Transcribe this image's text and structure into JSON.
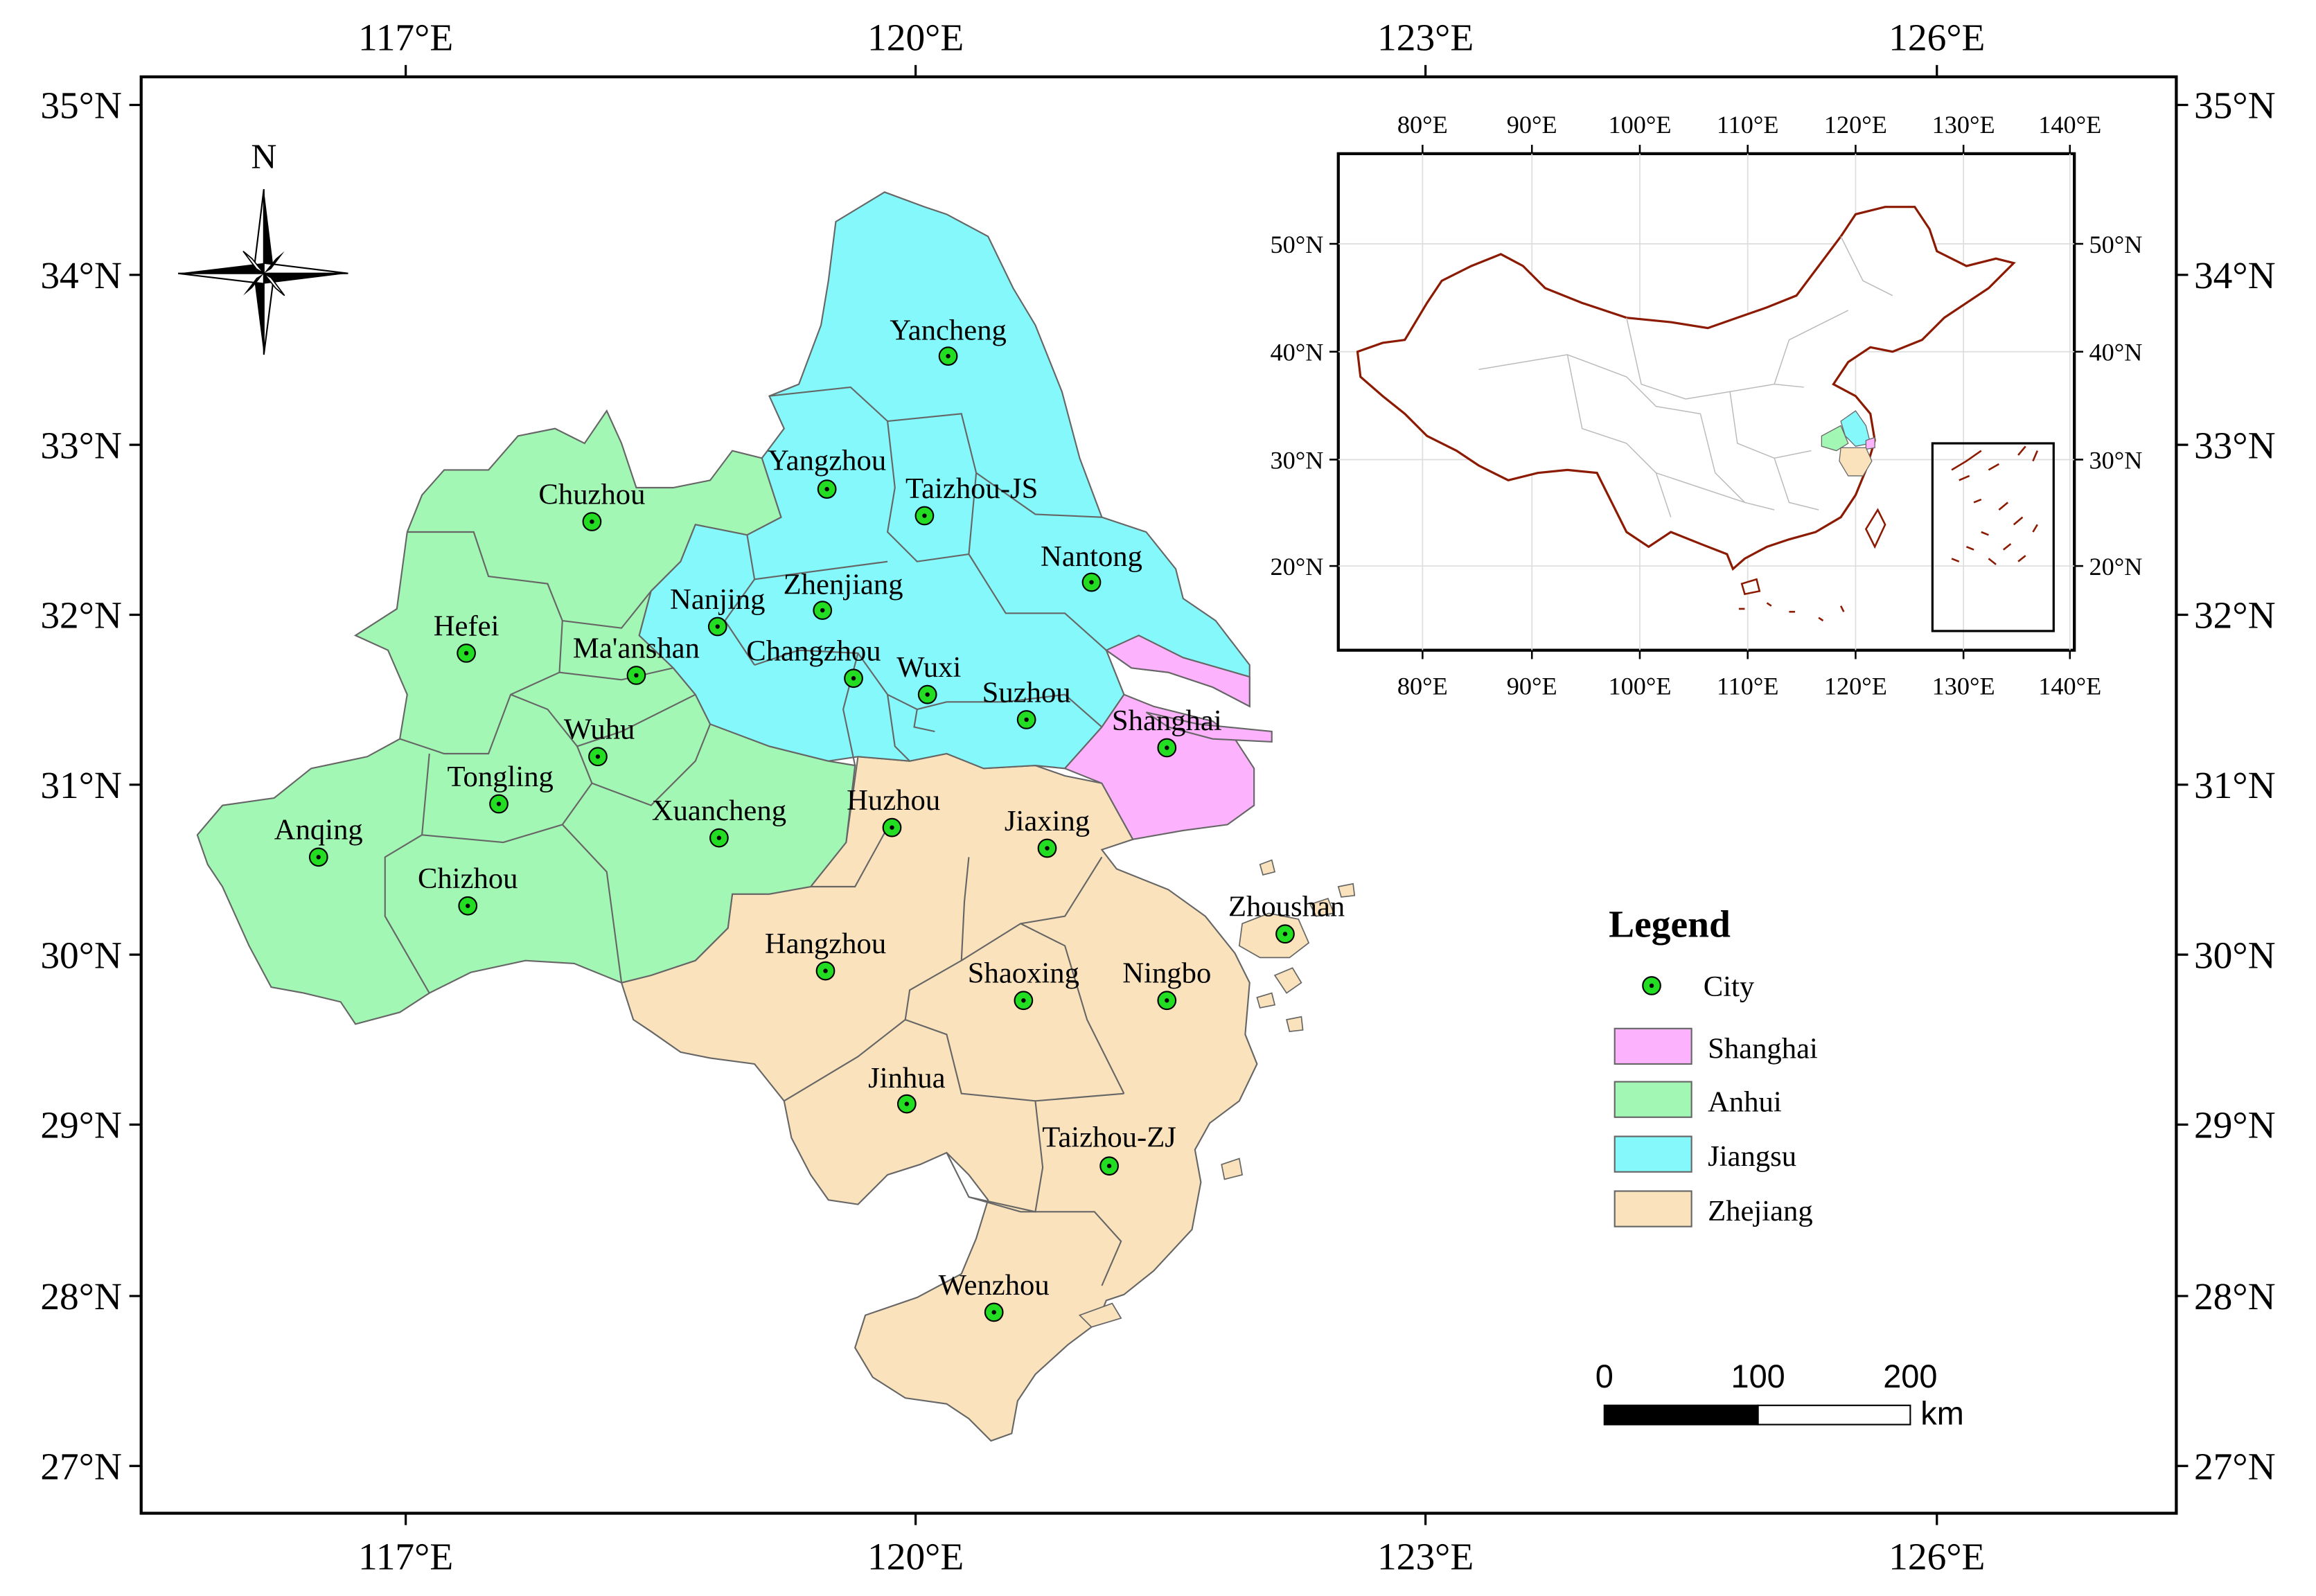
{
  "main_map": {
    "lon_ticks": [
      "117°E",
      "120°E",
      "123°E",
      "126°E"
    ],
    "lat_ticks": [
      "27°N",
      "28°N",
      "29°N",
      "30°N",
      "31°N",
      "32°N",
      "33°N",
      "34°N",
      "35°N"
    ],
    "north_arrow_label": "N",
    "cities": [
      {
        "name": "Yancheng",
        "province": "Jiangsu"
      },
      {
        "name": "Yangzhou",
        "province": "Jiangsu"
      },
      {
        "name": "Taizhou-JS",
        "province": "Jiangsu"
      },
      {
        "name": "Nantong",
        "province": "Jiangsu"
      },
      {
        "name": "Nanjing",
        "province": "Jiangsu"
      },
      {
        "name": "Zhenjiang",
        "province": "Jiangsu"
      },
      {
        "name": "Changzhou",
        "province": "Jiangsu"
      },
      {
        "name": "Wuxi",
        "province": "Jiangsu"
      },
      {
        "name": "Suzhou",
        "province": "Jiangsu"
      },
      {
        "name": "Shanghai",
        "province": "Shanghai"
      },
      {
        "name": "Chuzhou",
        "province": "Anhui"
      },
      {
        "name": "Hefei",
        "province": "Anhui"
      },
      {
        "name": "Ma'anshan",
        "province": "Anhui"
      },
      {
        "name": "Wuhu",
        "province": "Anhui"
      },
      {
        "name": "Tongling",
        "province": "Anhui"
      },
      {
        "name": "Anqing",
        "province": "Anhui"
      },
      {
        "name": "Chizhou",
        "province": "Anhui"
      },
      {
        "name": "Xuancheng",
        "province": "Anhui"
      },
      {
        "name": "Huzhou",
        "province": "Zhejiang"
      },
      {
        "name": "Jiaxing",
        "province": "Zhejiang"
      },
      {
        "name": "Zhoushan",
        "province": "Zhejiang"
      },
      {
        "name": "Hangzhou",
        "province": "Zhejiang"
      },
      {
        "name": "Shaoxing",
        "province": "Zhejiang"
      },
      {
        "name": "Ningbo",
        "province": "Zhejiang"
      },
      {
        "name": "Jinhua",
        "province": "Zhejiang"
      },
      {
        "name": "Taizhou-ZJ",
        "province": "Zhejiang"
      },
      {
        "name": "Wenzhou",
        "province": "Zhejiang"
      }
    ]
  },
  "inset_map": {
    "lon_ticks": [
      "80°E",
      "90°E",
      "100°E",
      "110°E",
      "120°E",
      "130°E",
      "140°E"
    ],
    "lat_ticks": [
      "20°N",
      "30°N",
      "40°N",
      "50°N"
    ]
  },
  "legend": {
    "title": "Legend",
    "items": [
      {
        "label": "City",
        "kind": "point",
        "color": "#22dd22"
      },
      {
        "label": "Shanghai",
        "kind": "area",
        "color": "#fcb2fc"
      },
      {
        "label": "Anhui",
        "kind": "area",
        "color": "#a3f7b4"
      },
      {
        "label": "Jiangsu",
        "kind": "area",
        "color": "#84f8fa"
      },
      {
        "label": "Zhejiang",
        "kind": "area",
        "color": "#fae3bc"
      }
    ]
  },
  "scale_bar": {
    "labels": [
      "0",
      "100",
      "200"
    ],
    "unit": "km"
  },
  "colors": {
    "shanghai": "#fcb2fc",
    "anhui": "#a3f7b4",
    "jiangsu": "#84f8fa",
    "zhejiang": "#fae3bc",
    "city_marker": "#22dd22",
    "china_border": "#8b1a00",
    "province_border": "#666666"
  }
}
